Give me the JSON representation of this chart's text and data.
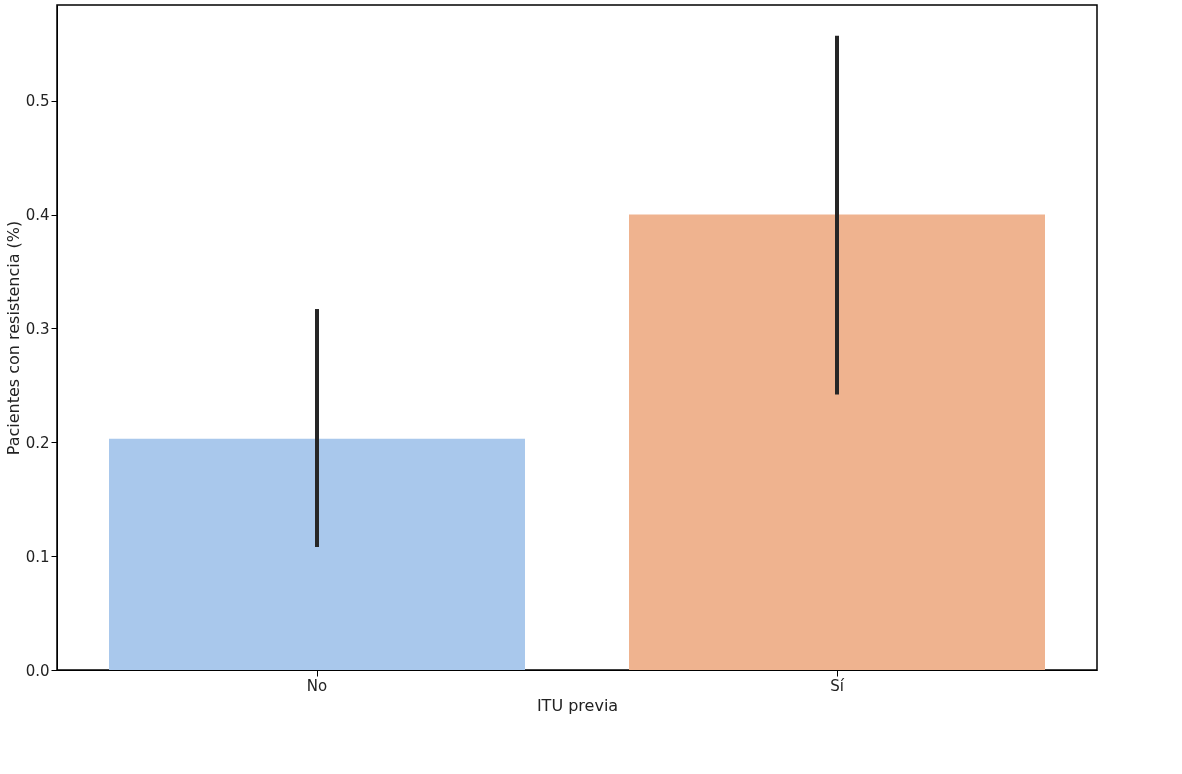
{
  "chart_data": {
    "type": "bar",
    "xlabel": "ITU previa",
    "ylabel": "Pacientes con resistencia (%)",
    "categories": [
      "No",
      "Sí"
    ],
    "values": [
      0.203,
      0.4
    ],
    "colors": [
      "#a9c8ec",
      "#efb38f"
    ],
    "errors": [
      [
        0.108,
        0.317
      ],
      [
        0.242,
        0.557
      ]
    ],
    "ylim": [
      0,
      0.584
    ],
    "yticks": [
      {
        "value": 0,
        "label": "0.0"
      },
      {
        "value": 0.1,
        "label": "0.1"
      },
      {
        "value": 0.2,
        "label": "0.2"
      },
      {
        "value": 0.3,
        "label": "0.3"
      },
      {
        "value": 0.4,
        "label": "0.4"
      },
      {
        "value": 0.5,
        "label": "0.5"
      }
    ],
    "grid": false
  }
}
